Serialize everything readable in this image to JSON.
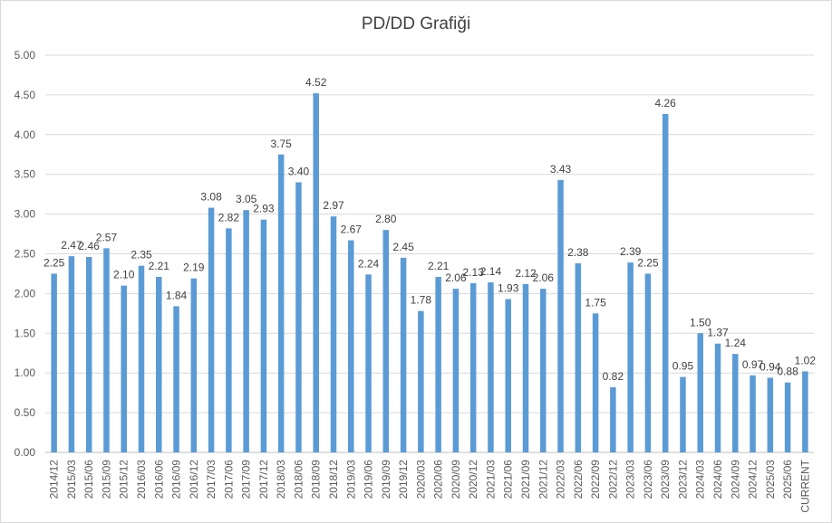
{
  "chart_data": {
    "type": "bar",
    "title": "PD/DD Grafiği",
    "xlabel": "",
    "ylabel": "",
    "ylim": [
      0,
      5
    ],
    "yticks": [
      "0.00",
      "0.50",
      "1.00",
      "1.50",
      "2.00",
      "2.50",
      "3.00",
      "3.50",
      "4.00",
      "4.50",
      "5.00"
    ],
    "grid": true,
    "legend": "none",
    "bar_color": "#5b9bd5",
    "categories": [
      "2014/12",
      "2015/03",
      "2015/06",
      "2015/09",
      "2015/12",
      "2016/03",
      "2016/06",
      "2016/09",
      "2016/12",
      "2017/03",
      "2017/06",
      "2017/09",
      "2017/12",
      "2018/03",
      "2018/06",
      "2018/09",
      "2018/12",
      "2019/03",
      "2019/06",
      "2019/09",
      "2019/12",
      "2020/03",
      "2020/06",
      "2020/09",
      "2020/12",
      "2021/03",
      "2021/06",
      "2021/09",
      "2021/12",
      "2022/03",
      "2022/06",
      "2022/09",
      "2022/12",
      "2023/03",
      "2023/06",
      "2023/09",
      "2023/12",
      "2024/03",
      "2024/06",
      "2024/09",
      "2024/12",
      "2025/03",
      "2025/06",
      "CURRENT"
    ],
    "values": [
      2.25,
      2.47,
      2.46,
      2.57,
      2.1,
      2.35,
      2.21,
      1.84,
      2.19,
      3.08,
      2.82,
      3.05,
      2.93,
      3.75,
      3.4,
      4.52,
      2.97,
      2.67,
      2.24,
      2.8,
      2.45,
      1.78,
      2.21,
      2.06,
      2.13,
      2.14,
      1.93,
      2.12,
      2.06,
      3.43,
      2.38,
      1.75,
      0.82,
      2.39,
      2.25,
      4.26,
      0.95,
      1.5,
      1.37,
      1.24,
      0.97,
      0.94,
      0.88,
      1.02
    ],
    "data_labels": [
      "2.25",
      "2.47",
      "2.46",
      "2.57",
      "2.10",
      "2.35",
      "2.21",
      "1.84",
      "2.19",
      "3.08",
      "2.82",
      "3.05",
      "2.93",
      "3.75",
      "3.40",
      "4.52",
      "2.97",
      "2.67",
      "2.24",
      "2.80",
      "2.45",
      "1.78",
      "2.21",
      "2.06",
      "2.13",
      "2.14",
      "1.93",
      "2.12",
      "2.06",
      "3.43",
      "2.38",
      "1.75",
      "0.82",
      "2.39",
      "2.25",
      "4.26",
      "0.95",
      "1.50",
      "1.37",
      "1.24",
      "0.97",
      "0.94",
      "0.88",
      "1.02"
    ]
  }
}
